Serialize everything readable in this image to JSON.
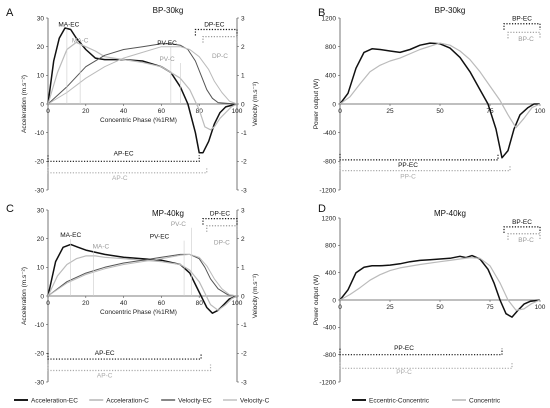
{
  "chart_data": [
    {
      "panel": "A",
      "type": "line",
      "title": "BP-30kg",
      "xlabel": "Concentric Phase (%1RM)",
      "ylabel": "Acceleration (m.s⁻²)",
      "y2label": "Velocity (m.s⁻¹)",
      "xlim": [
        0,
        100
      ],
      "ylim": [
        -30,
        30
      ],
      "y2lim": [
        -3,
        3
      ],
      "x_ticks": [
        0,
        20,
        40,
        60,
        80,
        100
      ],
      "y_ticks": [
        -30,
        -20,
        -10,
        0,
        10,
        20,
        30
      ],
      "y2_ticks": [
        -3,
        -2,
        -1,
        0,
        1,
        2,
        3
      ],
      "series": [
        {
          "name": "Acceleration-EC",
          "axis": "left",
          "color": "#111111",
          "width": 1.5,
          "x": [
            0,
            3,
            6,
            9,
            12,
            15,
            20,
            25,
            30,
            40,
            50,
            60,
            65,
            70,
            74,
            78,
            80,
            82,
            85,
            88,
            91,
            94,
            97,
            100
          ],
          "y": [
            0,
            15,
            23,
            26.5,
            26,
            23,
            19,
            16,
            15.5,
            15.5,
            15,
            13,
            11,
            6,
            0,
            -10,
            -17,
            -17,
            -13,
            -7,
            -3,
            -1,
            -0.5,
            0
          ]
        },
        {
          "name": "Acceleration-C",
          "axis": "left",
          "color": "#bbbbbb",
          "width": 1.2,
          "x": [
            0,
            5,
            10,
            15,
            20,
            25,
            30,
            40,
            50,
            60,
            70,
            75,
            80,
            83,
            86,
            88,
            91,
            94,
            97,
            100
          ],
          "y": [
            0,
            11,
            19,
            21.5,
            20,
            18.5,
            16.5,
            15.5,
            14.5,
            13,
            9,
            5,
            -2,
            -8,
            -9,
            -8,
            -5,
            -3,
            -1,
            0
          ]
        },
        {
          "name": "Velocity-EC",
          "axis": "right",
          "color": "#555555",
          "width": 1.0,
          "x": [
            0,
            10,
            20,
            30,
            40,
            50,
            60,
            65,
            70,
            74,
            78,
            81,
            84,
            87,
            90,
            95,
            100
          ],
          "y": [
            0,
            0.6,
            1.3,
            1.7,
            1.9,
            2.0,
            2.1,
            2.1,
            2.05,
            1.9,
            1.5,
            1.0,
            0.5,
            0.2,
            0.05,
            0.02,
            0
          ]
        },
        {
          "name": "Velocity-C",
          "axis": "right",
          "color": "#bbbbbb",
          "width": 1.0,
          "x": [
            0,
            10,
            20,
            30,
            40,
            50,
            60,
            70,
            75,
            80,
            85,
            88,
            92,
            96,
            100
          ],
          "y": [
            0,
            0.4,
            0.9,
            1.3,
            1.6,
            1.8,
            2.0,
            2.0,
            1.9,
            1.65,
            1.2,
            0.8,
            0.4,
            0.1,
            0
          ]
        }
      ],
      "annotations": [
        {
          "text": "MA-EC",
          "x": 11,
          "y": 27,
          "color": "#111111",
          "marker_x": 10
        },
        {
          "text": "MA-C",
          "x": 17,
          "y": 21.5,
          "color": "#999999",
          "marker_x": 17
        },
        {
          "text": "PV-EC",
          "x": 63,
          "y": 2.05,
          "color": "#111111",
          "axis": "right",
          "marker_x": 65
        },
        {
          "text": "PV-C",
          "x": 63,
          "y": 1.5,
          "color": "#999999",
          "axis": "right",
          "marker_x": 70
        }
      ],
      "brackets": [
        {
          "text": "DP-EC",
          "axis": "right",
          "y": 2.6,
          "x0": 78,
          "x1": 100,
          "side": "top",
          "color": "#111111",
          "labelx": 88
        },
        {
          "text": "DP-C",
          "axis": "right",
          "y": 2.35,
          "x0": 82,
          "x1": 100,
          "side": "top",
          "color": "#999999",
          "labelx": 91,
          "labely": 1.6
        },
        {
          "text": "AP-EC",
          "axis": "left",
          "y": -20,
          "x0": 0,
          "x1": 80,
          "side": "bottom",
          "color": "#111111",
          "labelx": 40,
          "labely": -18
        },
        {
          "text": "AP-C",
          "axis": "left",
          "y": -24,
          "x0": 0,
          "x1": 84,
          "side": "bottom",
          "color": "#aaaaaa",
          "labelx": 38,
          "labely": -26.5
        }
      ]
    },
    {
      "panel": "B",
      "type": "line",
      "title": "BP-30kg",
      "xlabel": "",
      "ylabel": "Power output (W)",
      "xlim": [
        0,
        100
      ],
      "ylim": [
        -1200,
        1200
      ],
      "x_ticks": [
        0,
        25,
        50,
        75,
        100
      ],
      "y_ticks": [
        -1200,
        -800,
        -400,
        0,
        400,
        800,
        1200
      ],
      "series": [
        {
          "name": "Eccentric-Concentric",
          "color": "#111111",
          "width": 1.5,
          "x": [
            0,
            4,
            8,
            12,
            16,
            20,
            25,
            30,
            35,
            40,
            45,
            50,
            55,
            60,
            65,
            70,
            74,
            78,
            81,
            84,
            87,
            90,
            94,
            97,
            100
          ],
          "y": [
            0,
            150,
            500,
            720,
            770,
            760,
            740,
            720,
            760,
            820,
            850,
            840,
            780,
            650,
            450,
            200,
            0,
            -350,
            -750,
            -650,
            -350,
            -150,
            -50,
            0,
            0
          ]
        },
        {
          "name": "Concentric",
          "color": "#bbbbbb",
          "width": 1.2,
          "x": [
            0,
            5,
            10,
            15,
            20,
            25,
            30,
            40,
            50,
            55,
            60,
            65,
            70,
            75,
            80,
            84,
            88,
            92,
            96,
            100
          ],
          "y": [
            0,
            100,
            280,
            450,
            540,
            600,
            640,
            760,
            850,
            820,
            740,
            620,
            450,
            250,
            50,
            -150,
            -330,
            -200,
            -50,
            0
          ]
        }
      ],
      "brackets": [
        {
          "text": "BP-EC",
          "y": 1120,
          "x0": 82,
          "x1": 100,
          "side": "top",
          "color": "#111111",
          "labelx": 91
        },
        {
          "text": "BP-C",
          "y": 1000,
          "x0": 84,
          "x1": 100,
          "side": "top",
          "color": "#999999",
          "labelx": 93,
          "labely": 880
        },
        {
          "text": "PP-EC",
          "y": -780,
          "x0": 0,
          "x1": 79,
          "side": "bottom",
          "color": "#111111",
          "labelx": 34,
          "labely": -880
        },
        {
          "text": "PP-C",
          "y": -930,
          "x0": 0,
          "x1": 85,
          "side": "bottom",
          "color": "#aaaaaa",
          "labelx": 34,
          "labely": -1040
        }
      ]
    },
    {
      "panel": "C",
      "type": "line",
      "title": "MP-40kg",
      "xlabel": "Concentric Phase (%1RM)",
      "ylabel": "Acceleration (m.s⁻²)",
      "y2label": "Velocity (m.s⁻¹)",
      "xlim": [
        0,
        100
      ],
      "ylim": [
        -30,
        30
      ],
      "y2lim": [
        -3,
        3
      ],
      "x_ticks": [
        0,
        20,
        40,
        60,
        80,
        100
      ],
      "y_ticks": [
        -30,
        -20,
        -10,
        0,
        10,
        20,
        30
      ],
      "y2_ticks": [
        -3,
        -2,
        -1,
        0,
        1,
        2,
        3
      ],
      "series": [
        {
          "name": "Acceleration-EC",
          "axis": "left",
          "color": "#111111",
          "width": 1.5,
          "x": [
            0,
            4,
            8,
            12,
            16,
            20,
            30,
            40,
            50,
            60,
            70,
            75,
            78,
            81,
            84,
            87,
            90,
            93,
            96,
            100
          ],
          "y": [
            0,
            12,
            17,
            18,
            17,
            16,
            14.5,
            13.5,
            13,
            12.5,
            11,
            8,
            4,
            0,
            -4,
            -6,
            -5,
            -3,
            -1,
            0
          ]
        },
        {
          "name": "Acceleration-C",
          "axis": "left",
          "color": "#bbbbbb",
          "width": 1.2,
          "x": [
            0,
            5,
            10,
            15,
            20,
            25,
            30,
            40,
            50,
            60,
            70,
            75,
            80,
            83,
            86,
            90,
            94,
            97,
            100
          ],
          "y": [
            0,
            7,
            11,
            13,
            14,
            14,
            13.5,
            13,
            12.5,
            12,
            11,
            9,
            5,
            1,
            -3,
            -5,
            -3,
            -1,
            0
          ]
        },
        {
          "name": "Velocity-EC",
          "axis": "right",
          "color": "#555555",
          "width": 1.0,
          "x": [
            0,
            10,
            20,
            30,
            40,
            50,
            60,
            70,
            75,
            80,
            83,
            86,
            90,
            95,
            100
          ],
          "y": [
            0,
            0.5,
            0.8,
            1.0,
            1.15,
            1.25,
            1.35,
            1.45,
            1.45,
            1.3,
            1.0,
            0.6,
            0.25,
            0.05,
            0
          ]
        },
        {
          "name": "Velocity-C",
          "axis": "right",
          "color": "#bbbbbb",
          "width": 1.0,
          "x": [
            0,
            10,
            20,
            30,
            40,
            50,
            60,
            70,
            75,
            80,
            84,
            88,
            92,
            96,
            100
          ],
          "y": [
            0,
            0.45,
            0.75,
            0.95,
            1.1,
            1.2,
            1.3,
            1.42,
            1.45,
            1.35,
            1.05,
            0.6,
            0.25,
            0.05,
            0
          ]
        }
      ],
      "annotations": [
        {
          "text": "MA-EC",
          "x": 12,
          "y": 20.5,
          "color": "#111111",
          "marker_x": 12
        },
        {
          "text": "MA-C",
          "x": 28,
          "y": 16.5,
          "color": "#999999",
          "marker_x": 24
        },
        {
          "text": "PV-EC",
          "x": 59,
          "y": 2.0,
          "color": "#111111",
          "axis": "right",
          "marker_x": 72
        },
        {
          "text": "PV-C",
          "x": 69,
          "y": 2.45,
          "color": "#999999",
          "axis": "right",
          "marker_x": 76
        }
      ],
      "brackets": [
        {
          "text": "DP-EC",
          "axis": "right",
          "y": 2.7,
          "x0": 82,
          "x1": 100,
          "side": "top",
          "color": "#111111",
          "labelx": 91
        },
        {
          "text": "DP-C",
          "axis": "right",
          "y": 2.45,
          "x0": 84,
          "x1": 100,
          "side": "top",
          "color": "#999999",
          "labelx": 92,
          "labely": 1.8
        },
        {
          "text": "AP-EC",
          "axis": "left",
          "y": -22,
          "x0": 0,
          "x1": 81,
          "side": "bottom",
          "color": "#111111",
          "labelx": 30,
          "labely": -20.5
        },
        {
          "text": "AP-C",
          "axis": "left",
          "y": -26,
          "x0": 0,
          "x1": 86,
          "side": "bottom",
          "color": "#aaaaaa",
          "labelx": 30,
          "labely": -28.5
        }
      ]
    },
    {
      "panel": "D",
      "type": "line",
      "title": "MP-40kg",
      "xlabel": "",
      "ylabel": "Power output (W)",
      "xlim": [
        0,
        100
      ],
      "ylim": [
        -1200,
        1200
      ],
      "x_ticks": [
        0,
        25,
        50,
        75,
        100
      ],
      "y_ticks": [
        -1200,
        -800,
        -400,
        0,
        400,
        800,
        1200
      ],
      "series": [
        {
          "name": "Eccentric-Concentric",
          "color": "#111111",
          "width": 1.5,
          "x": [
            0,
            4,
            8,
            12,
            16,
            20,
            25,
            30,
            35,
            40,
            45,
            50,
            55,
            60,
            63,
            66,
            70,
            74,
            77,
            80,
            83,
            86,
            89,
            92,
            95,
            100
          ],
          "y": [
            0,
            150,
            400,
            480,
            500,
            500,
            510,
            530,
            560,
            580,
            590,
            600,
            610,
            640,
            620,
            650,
            600,
            450,
            250,
            0,
            -200,
            -250,
            -150,
            -60,
            -20,
            0
          ]
        },
        {
          "name": "Concentric",
          "color": "#bbbbbb",
          "width": 1.2,
          "x": [
            0,
            5,
            10,
            15,
            20,
            25,
            30,
            40,
            50,
            55,
            60,
            65,
            70,
            75,
            80,
            84,
            88,
            92,
            96,
            100
          ],
          "y": [
            0,
            80,
            180,
            290,
            370,
            430,
            470,
            520,
            560,
            580,
            600,
            620,
            610,
            500,
            250,
            0,
            -150,
            -130,
            -50,
            0
          ]
        }
      ],
      "brackets": [
        {
          "text": "BP-EC",
          "y": 1070,
          "x0": 82,
          "x1": 100,
          "side": "top",
          "color": "#111111",
          "labelx": 91
        },
        {
          "text": "BP-C",
          "y": 970,
          "x0": 84,
          "x1": 100,
          "side": "top",
          "color": "#999999",
          "labelx": 93,
          "labely": 850
        },
        {
          "text": "PP-EC",
          "y": -800,
          "x0": 0,
          "x1": 81,
          "side": "bottom",
          "color": "#111111",
          "labelx": 32,
          "labely": -730
        },
        {
          "text": "PP-C",
          "y": -1000,
          "x0": 0,
          "x1": 86,
          "side": "bottom",
          "color": "#aaaaaa",
          "labelx": 32,
          "labely": -1080
        }
      ]
    }
  ],
  "legends": {
    "left": [
      {
        "label": "Acceleration-EC",
        "color": "#111111",
        "width": 1.5
      },
      {
        "label": "Acceleration-C",
        "color": "#bbbbbb",
        "width": 1.2
      },
      {
        "label": "Velocity-EC",
        "color": "#555555",
        "width": 1.0
      },
      {
        "label": "Velocity-C",
        "color": "#bbbbbb",
        "width": 1.0
      }
    ],
    "right": [
      {
        "label": "Eccentric-Concentric",
        "color": "#111111",
        "width": 1.5
      },
      {
        "label": "Concentric",
        "color": "#bbbbbb",
        "width": 1.2
      }
    ]
  }
}
